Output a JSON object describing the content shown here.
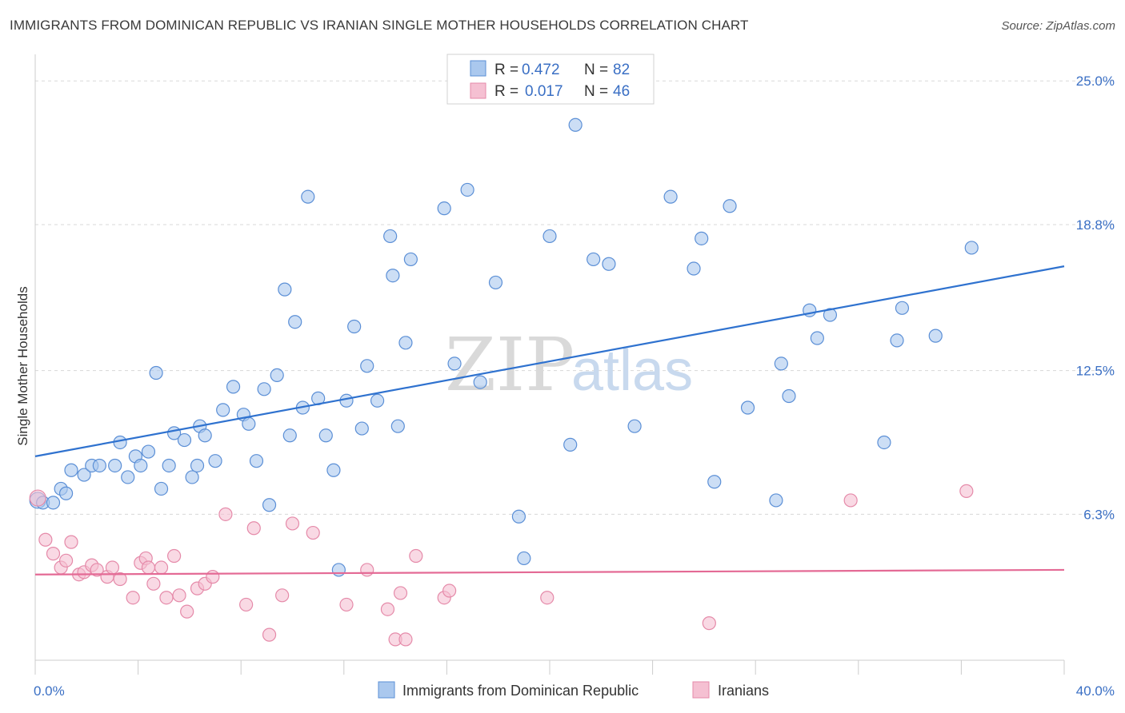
{
  "title": "IMMIGRANTS FROM DOMINICAN REPUBLIC VS IRANIAN SINGLE MOTHER HOUSEHOLDS CORRELATION CHART",
  "source": "Source: ZipAtlas.com",
  "watermark": {
    "zip": "ZIP",
    "atlas": "atlas"
  },
  "colors": {
    "blue_fill": "#aac8ee",
    "blue_stroke": "#5b8fd6",
    "blue_line": "#2f72cf",
    "pink_fill": "#f5c0d2",
    "pink_stroke": "#e58aa9",
    "pink_line": "#e46a95",
    "tick_text": "#3a6fc4",
    "grid": "#d8d8d8"
  },
  "legend": {
    "rows": [
      {
        "r_label": "R =",
        "r_value": "0.472",
        "n_label": "N =",
        "n_value": "82"
      },
      {
        "r_label": "R =",
        "r_value": "0.017",
        "n_label": "N =",
        "n_value": "46"
      }
    ]
  },
  "chart_data": {
    "type": "scatter",
    "xlabel": "",
    "ylabel": "Single Mother Households",
    "xlim": [
      0,
      40
    ],
    "ylim": [
      0,
      25.8
    ],
    "x_tick_labels": [
      "0.0%",
      "40.0%"
    ],
    "y_ticks": [
      6.3,
      12.5,
      18.8,
      25.0
    ],
    "y_tick_labels": [
      "6.3%",
      "12.5%",
      "18.8%",
      "25.0%"
    ],
    "grid": true,
    "legend_position": "top-center",
    "series": [
      {
        "name": "Immigrants from Dominican Republic",
        "color": "blue",
        "trend": {
          "x": [
            0,
            40
          ],
          "y": [
            8.8,
            17.0
          ]
        },
        "points": [
          [
            0.1,
            6.9
          ],
          [
            0.3,
            6.8
          ],
          [
            0.7,
            6.8
          ],
          [
            1.0,
            7.4
          ],
          [
            1.2,
            7.2
          ],
          [
            1.4,
            8.2
          ],
          [
            1.9,
            8.0
          ],
          [
            2.2,
            8.4
          ],
          [
            2.5,
            8.4
          ],
          [
            3.1,
            8.4
          ],
          [
            3.3,
            9.4
          ],
          [
            3.6,
            7.9
          ],
          [
            3.9,
            8.8
          ],
          [
            4.1,
            8.4
          ],
          [
            4.4,
            9.0
          ],
          [
            4.7,
            12.4
          ],
          [
            4.9,
            7.4
          ],
          [
            5.2,
            8.4
          ],
          [
            5.4,
            9.8
          ],
          [
            5.8,
            9.5
          ],
          [
            6.1,
            7.9
          ],
          [
            6.3,
            8.4
          ],
          [
            6.4,
            10.1
          ],
          [
            6.6,
            9.7
          ],
          [
            7.0,
            8.6
          ],
          [
            7.3,
            10.8
          ],
          [
            7.7,
            11.8
          ],
          [
            8.1,
            10.6
          ],
          [
            8.3,
            10.2
          ],
          [
            8.6,
            8.6
          ],
          [
            8.9,
            11.7
          ],
          [
            9.1,
            6.7
          ],
          [
            9.4,
            12.3
          ],
          [
            9.7,
            16.0
          ],
          [
            9.9,
            9.7
          ],
          [
            10.1,
            14.6
          ],
          [
            10.4,
            10.9
          ],
          [
            10.6,
            20.0
          ],
          [
            11.0,
            11.3
          ],
          [
            11.3,
            9.7
          ],
          [
            11.6,
            8.2
          ],
          [
            11.8,
            3.9
          ],
          [
            12.1,
            11.2
          ],
          [
            12.4,
            14.4
          ],
          [
            12.7,
            10.0
          ],
          [
            12.9,
            12.7
          ],
          [
            13.3,
            11.2
          ],
          [
            13.8,
            18.3
          ],
          [
            13.9,
            16.6
          ],
          [
            14.1,
            10.1
          ],
          [
            14.4,
            13.7
          ],
          [
            14.6,
            17.3
          ],
          [
            15.9,
            19.5
          ],
          [
            16.3,
            12.8
          ],
          [
            16.8,
            20.3
          ],
          [
            17.3,
            12.0
          ],
          [
            17.9,
            16.3
          ],
          [
            18.8,
            6.2
          ],
          [
            19.0,
            4.4
          ],
          [
            20.0,
            18.3
          ],
          [
            20.8,
            9.3
          ],
          [
            21.7,
            17.3
          ],
          [
            22.3,
            17.1
          ],
          [
            23.3,
            10.1
          ],
          [
            24.7,
            20.0
          ],
          [
            25.6,
            16.9
          ],
          [
            25.9,
            18.2
          ],
          [
            26.4,
            7.7
          ],
          [
            27.7,
            10.9
          ],
          [
            28.8,
            6.9
          ],
          [
            29.3,
            11.4
          ],
          [
            30.1,
            15.1
          ],
          [
            30.4,
            13.9
          ],
          [
            30.9,
            14.9
          ],
          [
            33.0,
            9.4
          ],
          [
            33.5,
            13.8
          ],
          [
            33.7,
            15.2
          ],
          [
            35.0,
            14.0
          ],
          [
            36.4,
            17.8
          ],
          [
            21.0,
            23.1
          ],
          [
            27.0,
            19.6
          ],
          [
            29.0,
            12.8
          ]
        ]
      },
      {
        "name": "Iranians",
        "color": "pink",
        "trend": {
          "x": [
            0,
            40
          ],
          "y": [
            3.7,
            3.9
          ]
        },
        "points": [
          [
            0.1,
            7.0
          ],
          [
            0.4,
            5.2
          ],
          [
            0.7,
            4.6
          ],
          [
            1.0,
            4.0
          ],
          [
            1.2,
            4.3
          ],
          [
            1.4,
            5.1
          ],
          [
            1.7,
            3.7
          ],
          [
            1.9,
            3.8
          ],
          [
            2.2,
            4.1
          ],
          [
            2.4,
            3.9
          ],
          [
            2.8,
            3.6
          ],
          [
            3.0,
            4.0
          ],
          [
            3.3,
            3.5
          ],
          [
            3.8,
            2.7
          ],
          [
            4.1,
            4.2
          ],
          [
            4.3,
            4.4
          ],
          [
            4.6,
            3.3
          ],
          [
            4.9,
            4.0
          ],
          [
            5.1,
            2.7
          ],
          [
            5.4,
            4.5
          ],
          [
            5.6,
            2.8
          ],
          [
            5.9,
            2.1
          ],
          [
            6.3,
            3.1
          ],
          [
            6.6,
            3.3
          ],
          [
            6.9,
            3.6
          ],
          [
            7.4,
            6.3
          ],
          [
            8.2,
            2.4
          ],
          [
            8.5,
            5.7
          ],
          [
            9.1,
            1.1
          ],
          [
            9.6,
            2.8
          ],
          [
            10.0,
            5.9
          ],
          [
            10.8,
            5.5
          ],
          [
            12.1,
            2.4
          ],
          [
            12.9,
            3.9
          ],
          [
            14.0,
            0.9
          ],
          [
            14.4,
            0.9
          ],
          [
            14.8,
            4.5
          ],
          [
            15.9,
            2.7
          ],
          [
            16.1,
            3.0
          ],
          [
            14.2,
            2.9
          ],
          [
            13.7,
            2.2
          ],
          [
            19.9,
            2.7
          ],
          [
            26.2,
            1.6
          ],
          [
            31.7,
            6.9
          ],
          [
            36.2,
            7.3
          ],
          [
            4.4,
            4.0
          ]
        ]
      }
    ]
  },
  "bottom_legend": [
    {
      "label": "Immigrants from Dominican Republic"
    },
    {
      "label": "Iranians"
    }
  ]
}
